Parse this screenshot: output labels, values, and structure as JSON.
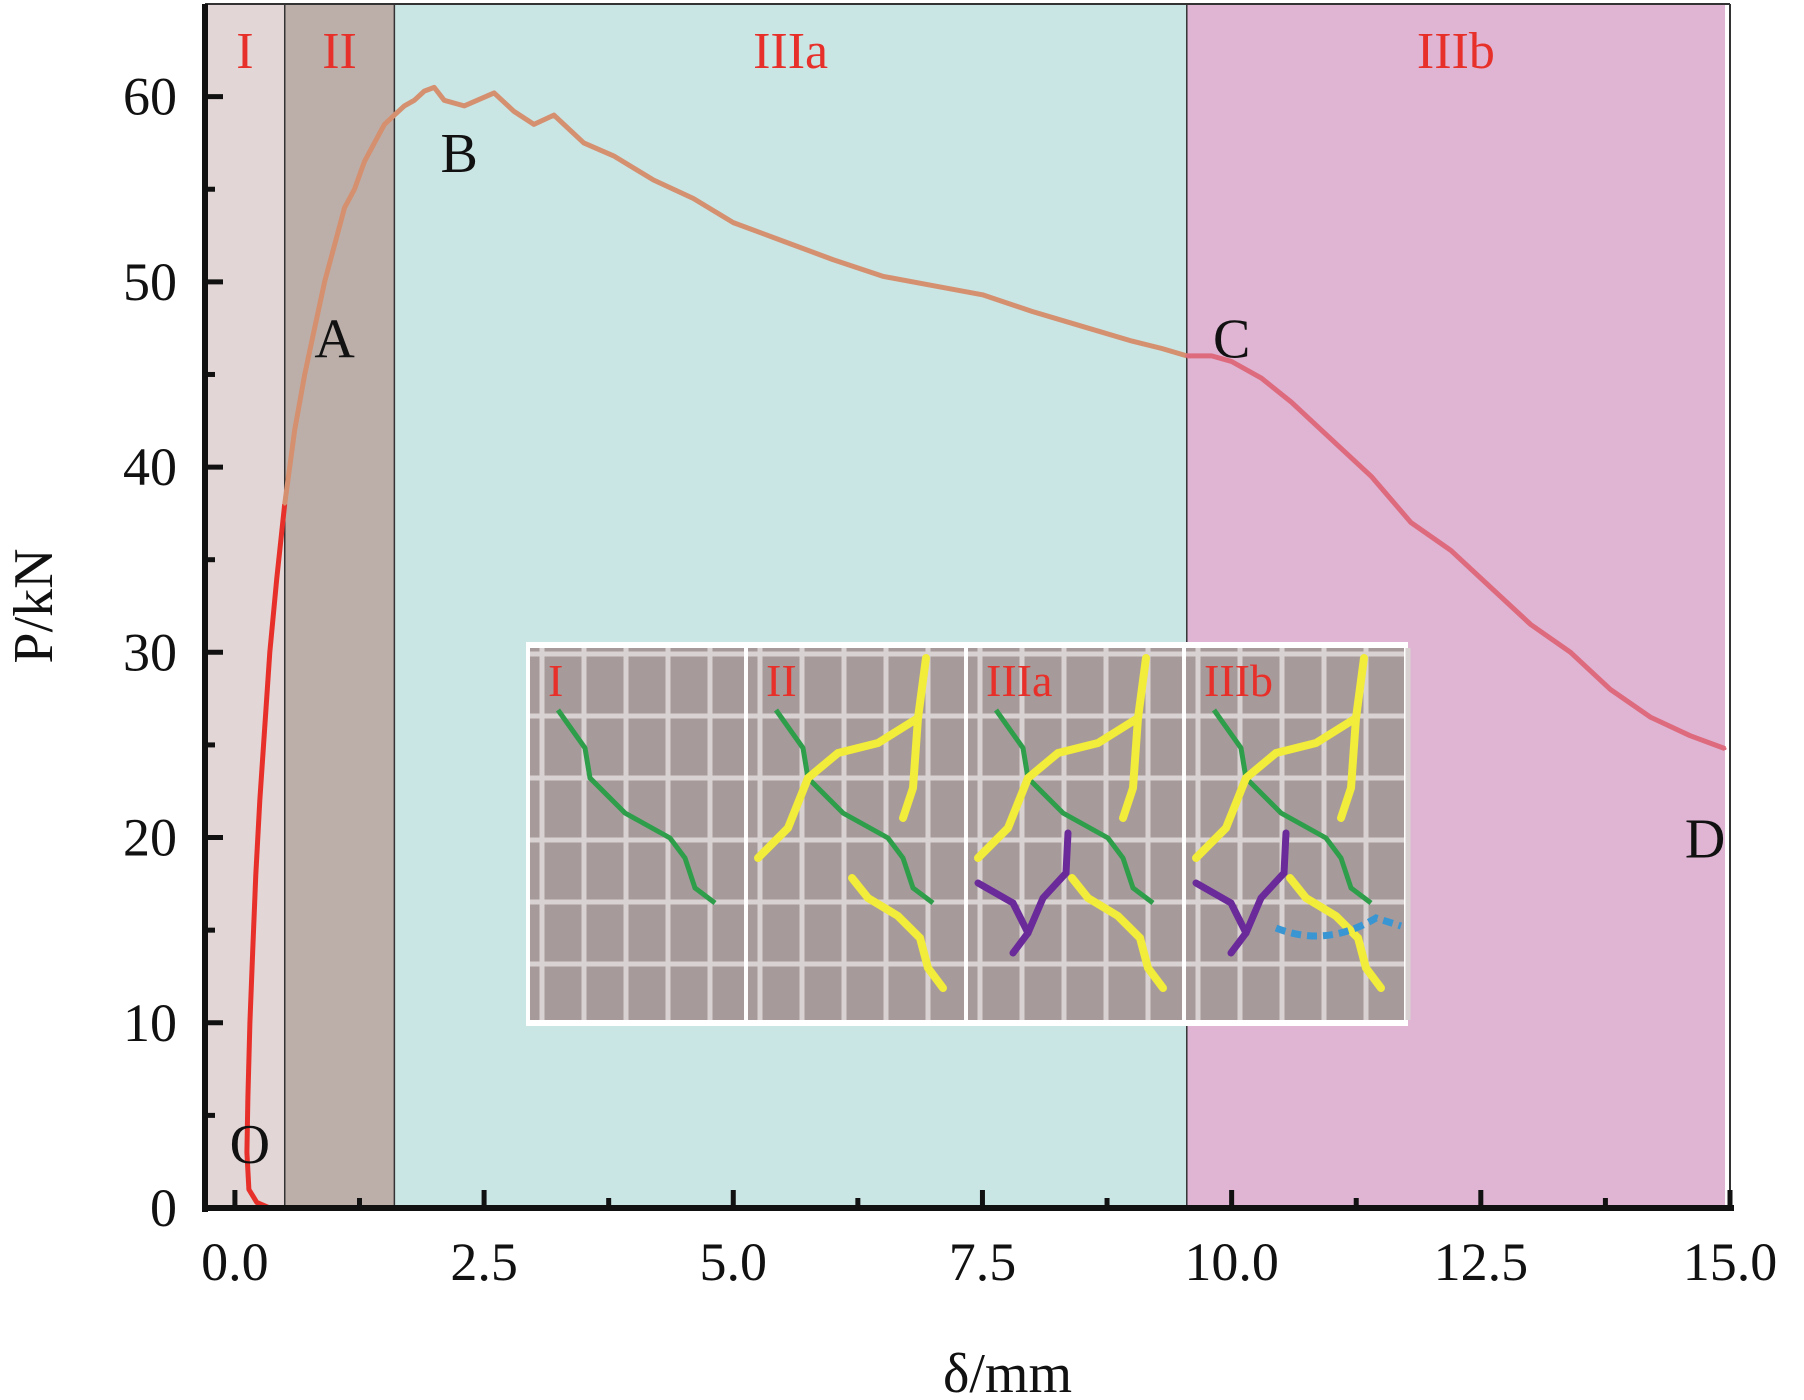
{
  "chart_data": {
    "type": "line",
    "xlabel": "δ/mm",
    "ylabel": "P/kN",
    "xlim": [
      -0.3,
      15.0
    ],
    "ylim": [
      0,
      65
    ],
    "xticks": [
      "0.0",
      "2.5",
      "5.0",
      "7.5",
      "10.0",
      "12.5",
      "15.0"
    ],
    "yticks": [
      "0",
      "10",
      "20",
      "30",
      "40",
      "50",
      "60"
    ],
    "grid": false,
    "regions": [
      {
        "label": "I",
        "x_start": -0.3,
        "x_end": 0.5,
        "color": "#e2d6d6"
      },
      {
        "label": "II",
        "x_start": 0.5,
        "x_end": 1.6,
        "color": "#bcafaa"
      },
      {
        "label": "IIIa",
        "x_start": 1.6,
        "x_end": 9.55,
        "color": "#c9e5e4"
      },
      {
        "label": "IIIb",
        "x_start": 9.55,
        "x_end": 14.95,
        "color": "#dfb5d3"
      }
    ],
    "points": [
      {
        "label": "O",
        "x": 0.15,
        "y": 3.5
      },
      {
        "label": "A",
        "x": 1.0,
        "y": 47
      },
      {
        "label": "B",
        "x": 2.25,
        "y": 57
      },
      {
        "label": "C",
        "x": 10.0,
        "y": 47
      },
      {
        "label": "D",
        "x": 14.75,
        "y": 20
      }
    ],
    "series": [
      {
        "color": "#e8302a",
        "x": [
          0.35,
          0.22,
          0.14,
          0.12,
          0.13,
          0.15,
          0.18,
          0.21,
          0.25,
          0.3,
          0.35,
          0.42,
          0.5
        ],
        "y": [
          0,
          0.3,
          1,
          3,
          6,
          10,
          14,
          18,
          22,
          26,
          30,
          34,
          38
        ]
      },
      {
        "color": "#d59070",
        "x": [
          0.5,
          0.6,
          0.7,
          0.8,
          0.9,
          1.0,
          1.1,
          1.2,
          1.3,
          1.4,
          1.5,
          1.6,
          1.7,
          1.8,
          1.9,
          2.0,
          2.1,
          2.3,
          2.6,
          2.8,
          3.0,
          3.2,
          3.5,
          3.8,
          4.2,
          4.6,
          5.0,
          5.5,
          6.0,
          6.5,
          7.0,
          7.5,
          8.0,
          8.5,
          9.0,
          9.3,
          9.55
        ],
        "y": [
          38,
          42,
          45,
          47.5,
          50,
          52,
          54,
          55,
          56.5,
          57.5,
          58.5,
          59,
          59.5,
          59.8,
          60.3,
          60.5,
          59.8,
          59.5,
          60.2,
          59.2,
          58.5,
          59.0,
          57.5,
          56.8,
          55.5,
          54.5,
          53.2,
          52.2,
          51.2,
          50.3,
          49.8,
          49.3,
          48.4,
          47.6,
          46.8,
          46.4,
          46.0
        ]
      },
      {
        "color": "#de6a7e",
        "x": [
          9.55,
          9.8,
          10.0,
          10.3,
          10.6,
          11.0,
          11.4,
          11.8,
          12.2,
          12.6,
          13.0,
          13.4,
          13.8,
          14.2,
          14.6,
          14.95
        ],
        "y": [
          46.0,
          46.0,
          45.7,
          44.8,
          43.5,
          41.5,
          39.5,
          37.0,
          35.5,
          33.5,
          31.5,
          30.0,
          28.0,
          26.5,
          25.5,
          24.8
        ]
      }
    ],
    "inset": {
      "panels": [
        "I",
        "II",
        "IIIa",
        "IIIb"
      ]
    }
  }
}
